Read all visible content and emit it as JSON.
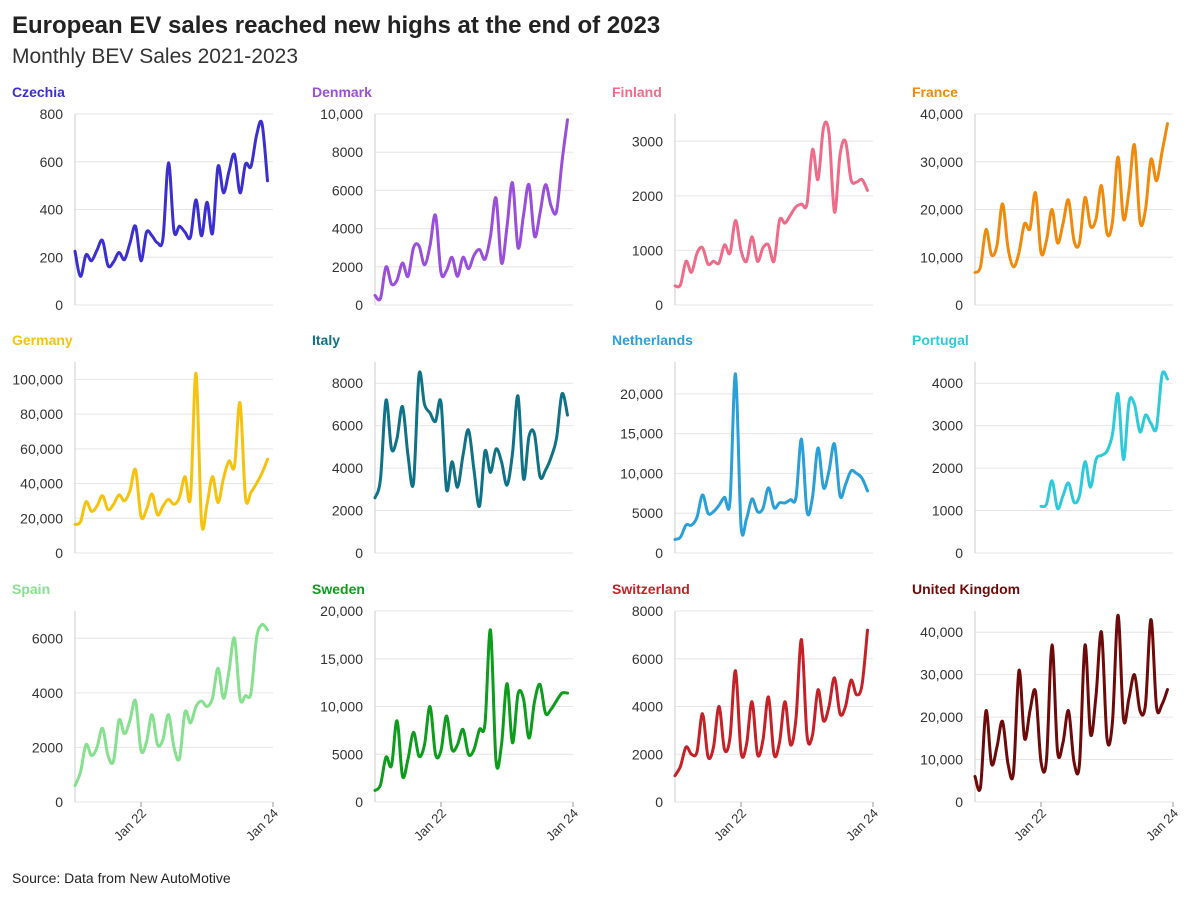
{
  "header": {
    "title": "European EV sales reached new highs at the end of 2023",
    "subtitle": "Monthly BEV Sales 2021-2023"
  },
  "footer": {
    "source": "Source: Data from New AutoMotive"
  },
  "chart_data": [
    {
      "type": "line",
      "title": "Czechia",
      "color": "#3b2fd0",
      "ylim": [
        0,
        800
      ],
      "yticks": [
        "0",
        "200",
        "400",
        "600",
        "800"
      ],
      "xlim": [
        "2021-01",
        "2024-01"
      ],
      "xticks": [
        "Jan 22",
        "Jan 24"
      ],
      "x": [
        "2021-01",
        "2021-02",
        "2021-03",
        "2021-04",
        "2021-05",
        "2021-06",
        "2021-07",
        "2021-08",
        "2021-09",
        "2021-10",
        "2021-11",
        "2021-12",
        "2022-01",
        "2022-02",
        "2022-03",
        "2022-04",
        "2022-05",
        "2022-06",
        "2022-07",
        "2022-08",
        "2022-09",
        "2022-10",
        "2022-11",
        "2022-12",
        "2023-01",
        "2023-02",
        "2023-03",
        "2023-04",
        "2023-05",
        "2023-06",
        "2023-07",
        "2023-08",
        "2023-09",
        "2023-10",
        "2023-11",
        "2023-12"
      ],
      "values": [
        225,
        120,
        210,
        185,
        230,
        270,
        165,
        180,
        220,
        190,
        260,
        330,
        185,
        305,
        290,
        260,
        280,
        595,
        310,
        330,
        305,
        285,
        440,
        290,
        430,
        300,
        580,
        470,
        560,
        630,
        470,
        590,
        580,
        710,
        760,
        520
      ]
    },
    {
      "type": "line",
      "title": "Denmark",
      "color": "#9a4fdb",
      "ylim": [
        0,
        10000
      ],
      "yticks": [
        "0",
        "2000",
        "4000",
        "6000",
        "8000",
        "10,000"
      ],
      "xlim": [
        "2021-01",
        "2024-01"
      ],
      "xticks": [
        "Jan 22",
        "Jan 24"
      ],
      "x": [
        "2021-01",
        "2021-02",
        "2021-03",
        "2021-04",
        "2021-05",
        "2021-06",
        "2021-07",
        "2021-08",
        "2021-09",
        "2021-10",
        "2021-11",
        "2021-12",
        "2022-01",
        "2022-02",
        "2022-03",
        "2022-04",
        "2022-05",
        "2022-06",
        "2022-07",
        "2022-08",
        "2022-09",
        "2022-10",
        "2022-11",
        "2022-12",
        "2023-01",
        "2023-02",
        "2023-03",
        "2023-04",
        "2023-05",
        "2023-06",
        "2023-07",
        "2023-08",
        "2023-09",
        "2023-10",
        "2023-11",
        "2023-12"
      ],
      "values": [
        500,
        350,
        2000,
        1100,
        1300,
        2200,
        1500,
        3000,
        3100,
        2100,
        3100,
        4700,
        1700,
        1800,
        2500,
        1500,
        2500,
        1900,
        2600,
        2900,
        2400,
        3600,
        5600,
        2200,
        4100,
        6400,
        3000,
        4700,
        6300,
        3600,
        4800,
        6300,
        5200,
        4900,
        7500,
        9700
      ]
    },
    {
      "type": "line",
      "title": "Finland",
      "color": "#ee6b8a",
      "ylim": [
        0,
        3500
      ],
      "yticks": [
        "0",
        "1000",
        "2000",
        "3000"
      ],
      "xlim": [
        "2021-01",
        "2024-01"
      ],
      "xticks": [
        "Jan 22",
        "Jan 24"
      ],
      "x": [
        "2021-01",
        "2021-02",
        "2021-03",
        "2021-04",
        "2021-05",
        "2021-06",
        "2021-07",
        "2021-08",
        "2021-09",
        "2021-10",
        "2021-11",
        "2021-12",
        "2022-01",
        "2022-02",
        "2022-03",
        "2022-04",
        "2022-05",
        "2022-06",
        "2022-07",
        "2022-08",
        "2022-09",
        "2022-10",
        "2022-11",
        "2022-12",
        "2023-01",
        "2023-02",
        "2023-03",
        "2023-04",
        "2023-05",
        "2023-06",
        "2023-07",
        "2023-08",
        "2023-09",
        "2023-10",
        "2023-11",
        "2023-12"
      ],
      "values": [
        350,
        370,
        800,
        600,
        950,
        1050,
        750,
        800,
        770,
        1100,
        950,
        1550,
        1000,
        800,
        1250,
        800,
        1050,
        1100,
        800,
        1550,
        1500,
        1650,
        1800,
        1850,
        1850,
        2850,
        2300,
        3250,
        3150,
        1700,
        2750,
        3000,
        2300,
        2250,
        2300,
        2100
      ]
    },
    {
      "type": "line",
      "title": "France",
      "color": "#f08a0c",
      "ylim": [
        0,
        40000
      ],
      "yticks": [
        "0",
        "10,000",
        "20,000",
        "30,000",
        "40,000"
      ],
      "xlim": [
        "2021-01",
        "2024-01"
      ],
      "xticks": [
        "Jan 22",
        "Jan 24"
      ],
      "x": [
        "2021-01",
        "2021-02",
        "2021-03",
        "2021-04",
        "2021-05",
        "2021-06",
        "2021-07",
        "2021-08",
        "2021-09",
        "2021-10",
        "2021-11",
        "2021-12",
        "2022-01",
        "2022-02",
        "2022-03",
        "2022-04",
        "2022-05",
        "2022-06",
        "2022-07",
        "2022-08",
        "2022-09",
        "2022-10",
        "2022-11",
        "2022-12",
        "2023-01",
        "2023-02",
        "2023-03",
        "2023-04",
        "2023-05",
        "2023-06",
        "2023-07",
        "2023-08",
        "2023-09",
        "2023-10",
        "2023-11",
        "2023-12"
      ],
      "values": [
        6800,
        8000,
        15800,
        10500,
        12500,
        21200,
        12000,
        8000,
        11000,
        17000,
        16000,
        23500,
        11000,
        13500,
        20000,
        13000,
        17000,
        22000,
        13500,
        13000,
        22500,
        16500,
        18000,
        25000,
        15000,
        17500,
        31000,
        18000,
        24000,
        33500,
        17500,
        20000,
        30500,
        26000,
        32000,
        38000
      ]
    },
    {
      "type": "line",
      "title": "Germany",
      "color": "#f6c20e",
      "ylim": [
        0,
        110000
      ],
      "yticks": [
        "0",
        "20,000",
        "40,000",
        "60,000",
        "80,000",
        "100,000"
      ],
      "xlim": [
        "2021-01",
        "2024-01"
      ],
      "xticks": [
        "Jan 22",
        "Jan 24"
      ],
      "x": [
        "2021-01",
        "2021-02",
        "2021-03",
        "2021-04",
        "2021-05",
        "2021-06",
        "2021-07",
        "2021-08",
        "2021-09",
        "2021-10",
        "2021-11",
        "2021-12",
        "2022-01",
        "2022-02",
        "2022-03",
        "2022-04",
        "2022-05",
        "2022-06",
        "2022-07",
        "2022-08",
        "2022-09",
        "2022-10",
        "2022-11",
        "2022-12",
        "2023-01",
        "2023-02",
        "2023-03",
        "2023-04",
        "2023-05",
        "2023-06",
        "2023-07",
        "2023-08",
        "2023-09",
        "2023-10",
        "2023-11",
        "2023-12"
      ],
      "values": [
        16500,
        18000,
        29500,
        24000,
        27000,
        33000,
        25000,
        28000,
        33500,
        30000,
        36000,
        48000,
        21000,
        25000,
        34000,
        22000,
        27000,
        31000,
        28000,
        32000,
        44000,
        32000,
        103500,
        18000,
        28000,
        44000,
        29000,
        43000,
        53000,
        50000,
        86500,
        32000,
        35000,
        40000,
        46000,
        54000
      ]
    },
    {
      "type": "line",
      "title": "Italy",
      "color": "#0f7286",
      "ylim": [
        0,
        9000
      ],
      "yticks": [
        "0",
        "2000",
        "4000",
        "6000",
        "8000"
      ],
      "xlim": [
        "2021-01",
        "2024-01"
      ],
      "xticks": [
        "Jan 22",
        "Jan 24"
      ],
      "x": [
        "2021-01",
        "2021-02",
        "2021-03",
        "2021-04",
        "2021-05",
        "2021-06",
        "2021-07",
        "2021-08",
        "2021-09",
        "2021-10",
        "2021-11",
        "2021-12",
        "2022-01",
        "2022-02",
        "2022-03",
        "2022-04",
        "2022-05",
        "2022-06",
        "2022-07",
        "2022-08",
        "2022-09",
        "2022-10",
        "2022-11",
        "2022-12",
        "2023-01",
        "2023-02",
        "2023-03",
        "2023-04",
        "2023-05",
        "2023-06",
        "2023-07",
        "2023-08",
        "2023-09",
        "2023-10",
        "2023-11",
        "2023-12"
      ],
      "values": [
        2600,
        3500,
        7200,
        4900,
        5400,
        6900,
        4600,
        3300,
        8400,
        7000,
        6600,
        6200,
        7100,
        3000,
        4300,
        3100,
        4600,
        5800,
        3900,
        2200,
        4800,
        3800,
        4900,
        4300,
        3200,
        4700,
        7400,
        3500,
        5500,
        5600,
        3600,
        3900,
        4500,
        5400,
        7500,
        6500
      ]
    },
    {
      "type": "line",
      "title": "Netherlands",
      "color": "#2a9fd8",
      "ylim": [
        0,
        24000
      ],
      "yticks": [
        "0",
        "5000",
        "10,000",
        "15,000",
        "20,000"
      ],
      "xlim": [
        "2021-01",
        "2024-01"
      ],
      "xticks": [
        "Jan 22",
        "Jan 24"
      ],
      "x": [
        "2021-01",
        "2021-02",
        "2021-03",
        "2021-04",
        "2021-05",
        "2021-06",
        "2021-07",
        "2021-08",
        "2021-09",
        "2021-10",
        "2021-11",
        "2021-12",
        "2022-01",
        "2022-02",
        "2022-03",
        "2022-04",
        "2022-05",
        "2022-06",
        "2022-07",
        "2022-08",
        "2022-09",
        "2022-10",
        "2022-11",
        "2022-12",
        "2023-01",
        "2023-02",
        "2023-03",
        "2023-04",
        "2023-05",
        "2023-06",
        "2023-07",
        "2023-08",
        "2023-09",
        "2023-10",
        "2023-11",
        "2023-12"
      ],
      "values": [
        1700,
        2000,
        3500,
        3500,
        4500,
        7300,
        5000,
        5200,
        6000,
        7000,
        6500,
        22500,
        3500,
        4300,
        6800,
        5200,
        5600,
        8200,
        5700,
        6300,
        6300,
        6700,
        7000,
        14300,
        5200,
        7000,
        13200,
        8200,
        10300,
        13700,
        7200,
        8600,
        10300,
        10000,
        9400,
        7800
      ]
    },
    {
      "type": "line",
      "title": "Portugal",
      "color": "#2ecad9",
      "ylim": [
        0,
        4500
      ],
      "yticks": [
        "0",
        "1000",
        "2000",
        "3000",
        "4000"
      ],
      "xlim": [
        "2021-01",
        "2024-01"
      ],
      "xticks": [
        "Jan 22",
        "Jan 24"
      ],
      "x": [
        "2022-01",
        "2022-02",
        "2022-03",
        "2022-04",
        "2022-05",
        "2022-06",
        "2022-07",
        "2022-08",
        "2022-09",
        "2022-10",
        "2022-11",
        "2022-12",
        "2023-01",
        "2023-02",
        "2023-03",
        "2023-04",
        "2023-05",
        "2023-06",
        "2023-07",
        "2023-08",
        "2023-09",
        "2023-10",
        "2023-11",
        "2023-12"
      ],
      "values": [
        1100,
        1150,
        1700,
        1050,
        1350,
        1650,
        1200,
        1350,
        2150,
        1550,
        2200,
        2300,
        2400,
        2800,
        3750,
        2200,
        3550,
        3500,
        2850,
        3250,
        3050,
        2950,
        4200,
        4100
      ]
    },
    {
      "type": "line",
      "title": "Spain",
      "color": "#86e08f",
      "ylim": [
        0,
        7000
      ],
      "yticks": [
        "0",
        "2000",
        "4000",
        "6000"
      ],
      "xlim": [
        "2021-01",
        "2024-01"
      ],
      "xticks": [
        "Jan 22",
        "Jan 24"
      ],
      "x": [
        "2021-01",
        "2021-02",
        "2021-03",
        "2021-04",
        "2021-05",
        "2021-06",
        "2021-07",
        "2021-08",
        "2021-09",
        "2021-10",
        "2021-11",
        "2021-12",
        "2022-01",
        "2022-02",
        "2022-03",
        "2022-04",
        "2022-05",
        "2022-06",
        "2022-07",
        "2022-08",
        "2022-09",
        "2022-10",
        "2022-11",
        "2022-12",
        "2023-01",
        "2023-02",
        "2023-03",
        "2023-04",
        "2023-05",
        "2023-06",
        "2023-07",
        "2023-08",
        "2023-09",
        "2023-10",
        "2023-11",
        "2023-12"
      ],
      "values": [
        600,
        1100,
        2100,
        1700,
        2000,
        2700,
        1700,
        1500,
        3000,
        2500,
        3000,
        3700,
        1900,
        2200,
        3200,
        2100,
        2300,
        3200,
        2000,
        1600,
        3300,
        2900,
        3500,
        3700,
        3500,
        3800,
        4900,
        3800,
        4800,
        6000,
        3800,
        3900,
        4000,
        6000,
        6500,
        6300
      ]
    },
    {
      "type": "line",
      "title": "Sweden",
      "color": "#0d9c1c",
      "ylim": [
        0,
        20000
      ],
      "yticks": [
        "0",
        "5000",
        "10,000",
        "15,000",
        "20,000"
      ],
      "xlim": [
        "2021-01",
        "2024-01"
      ],
      "xticks": [
        "Jan 22",
        "Jan 24"
      ],
      "x": [
        "2021-01",
        "2021-02",
        "2021-03",
        "2021-04",
        "2021-05",
        "2021-06",
        "2021-07",
        "2021-08",
        "2021-09",
        "2021-10",
        "2021-11",
        "2021-12",
        "2022-01",
        "2022-02",
        "2022-03",
        "2022-04",
        "2022-05",
        "2022-06",
        "2022-07",
        "2022-08",
        "2022-09",
        "2022-10",
        "2022-11",
        "2022-12",
        "2023-01",
        "2023-02",
        "2023-03",
        "2023-04",
        "2023-05",
        "2023-06",
        "2023-07",
        "2023-08",
        "2023-09",
        "2023-10",
        "2023-11",
        "2023-12"
      ],
      "values": [
        1200,
        1800,
        4700,
        3800,
        8500,
        2700,
        4500,
        7300,
        4800,
        6000,
        10000,
        5000,
        5400,
        9000,
        5500,
        6000,
        7600,
        5000,
        5500,
        7600,
        8200,
        18000,
        4300,
        6000,
        12400,
        6200,
        11300,
        10800,
        6700,
        10500,
        12300,
        9300,
        9700,
        10600,
        11400,
        11400
      ]
    },
    {
      "type": "line",
      "title": "Switzerland",
      "color": "#c42128",
      "ylim": [
        0,
        8000
      ],
      "yticks": [
        "0",
        "2000",
        "4000",
        "6000",
        "8000"
      ],
      "xlim": [
        "2021-01",
        "2024-01"
      ],
      "xticks": [
        "Jan 22",
        "Jan 24"
      ],
      "x": [
        "2021-01",
        "2021-02",
        "2021-03",
        "2021-04",
        "2021-05",
        "2021-06",
        "2021-07",
        "2021-08",
        "2021-09",
        "2021-10",
        "2021-11",
        "2021-12",
        "2022-01",
        "2022-02",
        "2022-03",
        "2022-04",
        "2022-05",
        "2022-06",
        "2022-07",
        "2022-08",
        "2022-09",
        "2022-10",
        "2022-11",
        "2022-12",
        "2023-01",
        "2023-02",
        "2023-03",
        "2023-04",
        "2023-05",
        "2023-06",
        "2023-07",
        "2023-08",
        "2023-09",
        "2023-10",
        "2023-11",
        "2023-12"
      ],
      "values": [
        1100,
        1500,
        2300,
        2000,
        2100,
        3700,
        1900,
        2300,
        4000,
        2200,
        2700,
        5500,
        2100,
        2400,
        4200,
        2000,
        2600,
        4400,
        2000,
        2500,
        4200,
        2400,
        3500,
        6800,
        2800,
        2800,
        4700,
        3400,
        4000,
        5200,
        3700,
        4000,
        5100,
        4500,
        4900,
        7200
      ]
    },
    {
      "type": "line",
      "title": "United Kingdom",
      "color": "#6e0a0a",
      "ylim": [
        0,
        45000
      ],
      "yticks": [
        "0",
        "10,000",
        "20,000",
        "30,000",
        "40,000"
      ],
      "xlim": [
        "2021-01",
        "2024-01"
      ],
      "xticks": [
        "Jan 22",
        "Jan 24"
      ],
      "x": [
        "2021-01",
        "2021-02",
        "2021-03",
        "2021-04",
        "2021-05",
        "2021-06",
        "2021-07",
        "2021-08",
        "2021-09",
        "2021-10",
        "2021-11",
        "2021-12",
        "2022-01",
        "2022-02",
        "2022-03",
        "2022-04",
        "2022-05",
        "2022-06",
        "2022-07",
        "2022-08",
        "2022-09",
        "2022-10",
        "2022-11",
        "2022-12",
        "2023-01",
        "2023-02",
        "2023-03",
        "2023-04",
        "2023-05",
        "2023-06",
        "2023-07",
        "2023-08",
        "2023-09",
        "2023-10",
        "2023-11",
        "2023-12"
      ],
      "values": [
        6000,
        3500,
        21500,
        9000,
        13000,
        19000,
        9000,
        7000,
        31000,
        15000,
        21500,
        26000,
        9500,
        10000,
        37000,
        12000,
        14000,
        21500,
        9500,
        9000,
        37000,
        16000,
        25000,
        40000,
        15000,
        19000,
        44000,
        19500,
        24500,
        30000,
        21500,
        23000,
        43000,
        22500,
        23000,
        26500
      ]
    }
  ]
}
